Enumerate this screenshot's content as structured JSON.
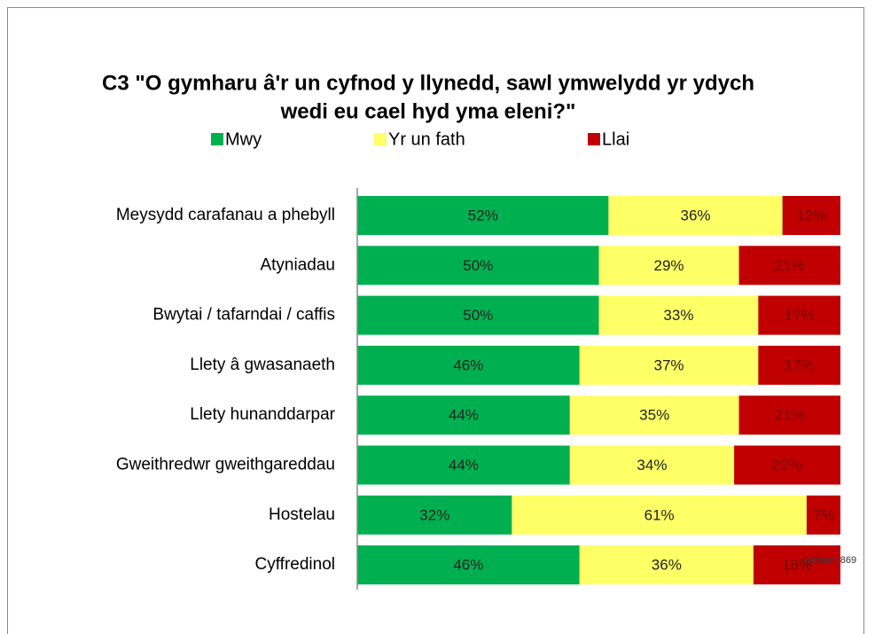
{
  "chart_data": {
    "type": "stacked_bar_horizontal",
    "title": "C3 \"O gymharu â'r un cyfnod y llynedd, sawl ymwelydd yr ydych wedi eu cael hyd yma eleni?\"",
    "title_lines": [
      "C3 \"O gymharu â'r un cyfnod y llynedd, sawl ymwelydd yr ydych",
      "wedi eu cael hyd yma eleni?\""
    ],
    "annotation": "Sylfaen: 869",
    "categories": [
      "Meysydd carafanau a phebyll",
      "Atyniadau",
      "Bwytai / tafarndai / caffis",
      "Llety â gwasanaeth",
      "Llety hunanddarpar",
      "Gweithredwr gweithgareddau",
      "Hostelau",
      "Cyffredinol"
    ],
    "xlim": [
      0,
      100
    ],
    "series": [
      {
        "name": "Mwy",
        "color": "#00b050",
        "values": [
          52,
          50,
          50,
          46,
          44,
          44,
          32,
          46
        ],
        "value_labels": [
          "52%",
          "50%",
          "50%",
          "46%",
          "44%",
          "44%",
          "32%",
          "46%"
        ]
      },
      {
        "name": "Yr un fath",
        "color": "#ffff66",
        "values": [
          36,
          29,
          33,
          37,
          35,
          34,
          61,
          36
        ],
        "value_labels": [
          "36%",
          "29%",
          "33%",
          "37%",
          "35%",
          "34%",
          "61%",
          "36%"
        ]
      },
      {
        "name": "Llai",
        "color": "#c00000",
        "values": [
          12,
          21,
          17,
          17,
          21,
          22,
          7,
          18
        ],
        "value_labels": [
          "12%",
          "21%",
          "17%",
          "17%",
          "21%",
          "22%",
          "7%",
          "18%"
        ]
      }
    ],
    "legend": "top"
  }
}
